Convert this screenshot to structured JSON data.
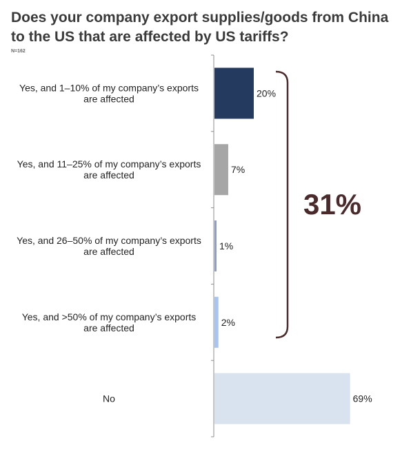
{
  "title": "Does your company export supplies/goods from China to the US that are affected by US tariffs?",
  "note": "N=162",
  "callout": {
    "label": "31%",
    "color": "#4a2a2a"
  },
  "chart_data": {
    "type": "bar",
    "orientation": "horizontal",
    "title": "Does your company export supplies/goods from China to the US that are affected by US tariffs?",
    "categories": [
      [
        "Yes, and 1–10% of my company’s exports",
        "are affected"
      ],
      [
        "Yes, and 11–25% of my company’s exports",
        "are affected"
      ],
      [
        "Yes, and 26–50% of my company’s exports",
        "are affected"
      ],
      [
        "Yes, and >50% of my company’s exports",
        "are affected"
      ],
      [
        "No"
      ]
    ],
    "values": [
      20,
      7,
      1,
      2,
      69
    ],
    "value_labels": [
      "20%",
      "7%",
      "1%",
      "2%",
      "69%"
    ],
    "colors": [
      "#243a5e",
      "#a6a6a6",
      "#8e9fbf",
      "#a9c4f0",
      "#d9e3ef"
    ],
    "unit": "%",
    "xlim": [
      0,
      100
    ]
  }
}
